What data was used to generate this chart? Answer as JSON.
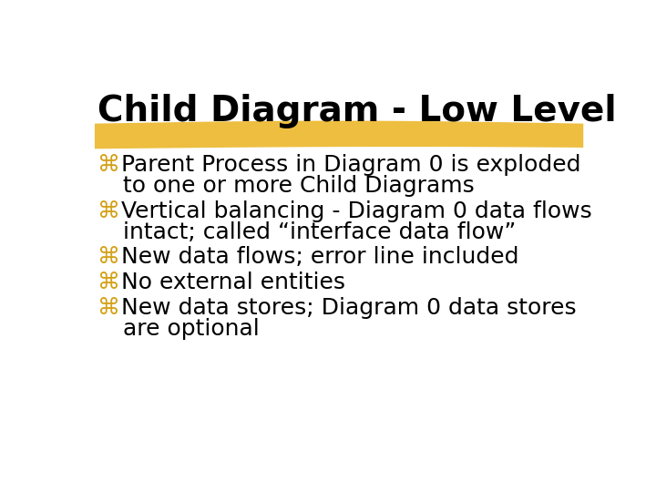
{
  "title": "Child Diagram - Low Level",
  "title_fontsize": 28,
  "title_color": "#000000",
  "title_fontweight": "bold",
  "title_font": "DejaVu Sans",
  "background_color": "#ffffff",
  "highlight_color": "#E8A800",
  "bullet_char": "⌘",
  "bullet_color": "#D4A017",
  "bullet_fontsize": 18,
  "text_color": "#000000",
  "text_fontsize": 18,
  "text_font": "DejaVu Sans",
  "bullets": [
    {
      "first_line": "Parent Process in Diagram 0 is exploded",
      "second_line": "to one or more Child Diagrams"
    },
    {
      "first_line": "Vertical balancing - Diagram 0 data flows",
      "second_line": "intact; called “interface data flow”"
    },
    {
      "first_line": "New data flows; error line included",
      "second_line": null
    },
    {
      "first_line": "No external entities",
      "second_line": null
    },
    {
      "first_line": "New data stores; Diagram 0 data stores",
      "second_line": "are optional"
    }
  ]
}
